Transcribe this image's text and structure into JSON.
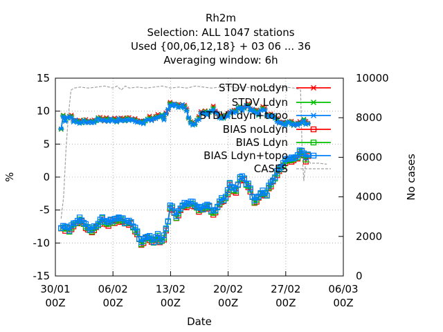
{
  "chart_data": {
    "type": "line",
    "title_lines": [
      "Rh2m",
      "Selection: ALL    1047 stations",
      "Used {00,06,12,18} + 03 06 ... 36",
      "Averaging window:  6h"
    ],
    "xlabel": "Date",
    "ylabel": "%",
    "y2label": "No cases",
    "xlim": [
      0,
      35
    ],
    "ylim": [
      -15,
      15
    ],
    "y2lim": [
      0,
      10000
    ],
    "grid": true,
    "legend_position": "top-right",
    "x_ticks": [
      {
        "x": 0,
        "line1": "30/01",
        "line2": "00Z"
      },
      {
        "x": 7,
        "line1": "06/02",
        "line2": "00Z"
      },
      {
        "x": 14,
        "line1": "13/02",
        "line2": "00Z"
      },
      {
        "x": 21,
        "line1": "20/02",
        "line2": "00Z"
      },
      {
        "x": 28,
        "line1": "27/02",
        "line2": "00Z"
      },
      {
        "x": 35,
        "line1": "06/03",
        "line2": "00Z"
      }
    ],
    "y_ticks": [
      {
        "v": 15,
        "label": "15"
      },
      {
        "v": 10,
        "label": "10"
      },
      {
        "v": 5,
        "label": "5"
      },
      {
        "v": 0,
        "label": "0"
      },
      {
        "v": -5,
        "label": "-5"
      },
      {
        "v": -10,
        "label": "-10"
      },
      {
        "v": -15,
        "label": "-15"
      }
    ],
    "y2_ticks": [
      {
        "v": 10000,
        "label": "10000"
      },
      {
        "v": 8000,
        "label": "8000"
      },
      {
        "v": 6000,
        "label": "6000"
      },
      {
        "v": 4000,
        "label": "4000"
      },
      {
        "v": 2000,
        "label": "2000"
      },
      {
        "v": 0,
        "label": "0"
      }
    ],
    "stdv_anchors": [
      [
        0.7,
        7.4
      ],
      [
        0.9,
        9.1
      ],
      [
        1.2,
        8.8
      ],
      [
        1.5,
        9.0
      ],
      [
        1.8,
        9.3
      ],
      [
        2.1,
        8.7
      ],
      [
        2.5,
        8.5
      ],
      [
        3.0,
        8.3
      ],
      [
        3.5,
        8.5
      ],
      [
        4.0,
        8.4
      ],
      [
        4.5,
        8.3
      ],
      [
        5.0,
        8.7
      ],
      [
        5.5,
        8.9
      ],
      [
        6.0,
        8.5
      ],
      [
        6.5,
        8.8
      ],
      [
        7.0,
        8.6
      ],
      [
        7.5,
        8.6
      ],
      [
        8.0,
        8.8
      ],
      [
        8.5,
        8.6
      ],
      [
        9.0,
        8.9
      ],
      [
        9.5,
        8.6
      ],
      [
        10.0,
        8.5
      ],
      [
        10.5,
        8.2
      ],
      [
        11.0,
        8.6
      ],
      [
        11.5,
        8.9
      ],
      [
        12.0,
        8.7
      ],
      [
        12.3,
        9.2
      ],
      [
        12.8,
        9.3
      ],
      [
        13.2,
        9.0
      ],
      [
        13.6,
        10.0
      ],
      [
        14.0,
        11.1
      ],
      [
        14.5,
        11.0
      ],
      [
        15.0,
        10.7
      ],
      [
        15.5,
        10.9
      ],
      [
        16.0,
        10.2
      ],
      [
        16.3,
        8.3
      ],
      [
        16.8,
        8.0
      ],
      [
        17.3,
        8.5
      ],
      [
        17.7,
        9.8
      ],
      [
        18.2,
        9.7
      ],
      [
        18.8,
        9.8
      ],
      [
        19.3,
        10.5
      ],
      [
        19.8,
        9.2
      ],
      [
        20.3,
        9.0
      ],
      [
        20.8,
        9.2
      ],
      [
        21.3,
        10.0
      ],
      [
        21.8,
        9.8
      ],
      [
        22.3,
        10.6
      ],
      [
        22.8,
        10.3
      ],
      [
        23.3,
        11.0
      ],
      [
        23.8,
        10.2
      ],
      [
        24.3,
        10.0
      ],
      [
        24.8,
        9.5
      ],
      [
        25.3,
        10.8
      ],
      [
        25.8,
        9.0
      ],
      [
        26.3,
        9.6
      ],
      [
        26.8,
        8.7
      ],
      [
        27.3,
        8.3
      ],
      [
        27.8,
        8.0
      ],
      [
        28.3,
        8.4
      ],
      [
        28.8,
        8.1
      ],
      [
        29.3,
        7.9
      ],
      [
        29.8,
        8.3
      ],
      [
        30.3,
        8.5
      ],
      [
        30.8,
        8.0
      ]
    ],
    "bias_anchors": [
      [
        0.7,
        -7.5
      ],
      [
        1.0,
        -7.4
      ],
      [
        1.4,
        -7.7
      ],
      [
        1.8,
        -7.9
      ],
      [
        2.1,
        -7.1
      ],
      [
        2.4,
        -7.0
      ],
      [
        2.8,
        -6.3
      ],
      [
        3.2,
        -6.5
      ],
      [
        3.6,
        -7.0
      ],
      [
        4.0,
        -7.8
      ],
      [
        4.4,
        -7.9
      ],
      [
        4.8,
        -7.6
      ],
      [
        5.2,
        -7.0
      ],
      [
        5.6,
        -6.2
      ],
      [
        6.0,
        -6.5
      ],
      [
        6.4,
        -7.0
      ],
      [
        6.8,
        -6.3
      ],
      [
        7.2,
        -6.6
      ],
      [
        7.6,
        -6.0
      ],
      [
        8.0,
        -6.2
      ],
      [
        8.4,
        -6.8
      ],
      [
        8.8,
        -6.6
      ],
      [
        9.2,
        -6.9
      ],
      [
        9.6,
        -7.5
      ],
      [
        10.0,
        -8.5
      ],
      [
        10.4,
        -9.9
      ],
      [
        10.8,
        -9.4
      ],
      [
        11.2,
        -8.8
      ],
      [
        11.6,
        -9.3
      ],
      [
        12.0,
        -9.9
      ],
      [
        12.3,
        -8.5
      ],
      [
        12.7,
        -9.6
      ],
      [
        13.0,
        -9.4
      ],
      [
        13.4,
        -8.3
      ],
      [
        13.7,
        -6.4
      ],
      [
        14.0,
        -4.0
      ],
      [
        14.3,
        -4.8
      ],
      [
        14.6,
        -5.9
      ],
      [
        15.0,
        -5.3
      ],
      [
        15.3,
        -4.5
      ],
      [
        15.6,
        -3.8
      ],
      [
        16.0,
        -4.3
      ],
      [
        16.4,
        -3.5
      ],
      [
        16.8,
        -4.1
      ],
      [
        17.2,
        -4.4
      ],
      [
        17.6,
        -4.8
      ],
      [
        18.0,
        -4.6
      ],
      [
        18.4,
        -4.2
      ],
      [
        18.8,
        -4.5
      ],
      [
        19.2,
        -5.3
      ],
      [
        19.6,
        -4.8
      ],
      [
        20.0,
        -3.4
      ],
      [
        20.4,
        -3.5
      ],
      [
        20.8,
        -2.7
      ],
      [
        21.2,
        -1.0
      ],
      [
        21.6,
        -1.5
      ],
      [
        22.0,
        -2.1
      ],
      [
        22.4,
        0.1
      ],
      [
        22.8,
        0.0
      ],
      [
        23.2,
        -0.8
      ],
      [
        23.6,
        -1.3
      ],
      [
        24.0,
        -3.2
      ],
      [
        24.4,
        -3.5
      ],
      [
        24.8,
        -2.6
      ],
      [
        25.2,
        -2.0
      ],
      [
        25.6,
        -3.0
      ],
      [
        26.0,
        -1.1
      ],
      [
        26.4,
        -0.7
      ],
      [
        26.8,
        0.5
      ],
      [
        27.2,
        1.2
      ],
      [
        27.6,
        2.0
      ],
      [
        28.0,
        2.6
      ],
      [
        28.4,
        3.0
      ],
      [
        28.8,
        2.7
      ],
      [
        29.2,
        3.1
      ],
      [
        29.6,
        3.6
      ],
      [
        30.0,
        4.3
      ],
      [
        30.4,
        2.9
      ],
      [
        30.8,
        3.4
      ]
    ],
    "cases_anchors": [
      [
        0.7,
        2900
      ],
      [
        1.0,
        4000
      ],
      [
        1.3,
        6500
      ],
      [
        1.6,
        8200
      ],
      [
        1.9,
        9400
      ],
      [
        2.3,
        9500
      ],
      [
        3.0,
        9550
      ],
      [
        4.0,
        9500
      ],
      [
        5.0,
        9550
      ],
      [
        6.0,
        9600
      ],
      [
        7.0,
        9500
      ],
      [
        7.5,
        9600
      ],
      [
        8.0,
        9400
      ],
      [
        8.5,
        9600
      ],
      [
        9.0,
        9500
      ],
      [
        10.0,
        9550
      ],
      [
        11.0,
        9500
      ],
      [
        12.0,
        9550
      ],
      [
        13.0,
        9600
      ],
      [
        14.0,
        9500
      ],
      [
        15.0,
        9550
      ],
      [
        16.0,
        9500
      ],
      [
        17.0,
        9600
      ],
      [
        18.0,
        9550
      ],
      [
        19.0,
        9500
      ],
      [
        20.0,
        9550
      ],
      [
        21.0,
        9600
      ],
      [
        22.0,
        9500
      ],
      [
        23.0,
        9550
      ],
      [
        24.0,
        9500
      ],
      [
        25.0,
        9600
      ],
      [
        26.0,
        9550
      ],
      [
        27.0,
        9500
      ],
      [
        28.0,
        9550
      ],
      [
        29.0,
        9500
      ],
      [
        29.5,
        9450
      ],
      [
        29.8,
        9400
      ],
      [
        30.0,
        6200
      ],
      [
        30.2,
        4800
      ],
      [
        30.5,
        6000
      ],
      [
        31.0,
        5700
      ],
      [
        32.0,
        5700
      ],
      [
        33.0,
        5650
      ]
    ],
    "series": [
      {
        "name": "STDV noLdyn",
        "kind": "stdv",
        "color": "#ff0000",
        "marker": "x",
        "offset": 0.12
      },
      {
        "name": "STDV Ldyn",
        "kind": "stdv",
        "color": "#00c000",
        "marker": "x",
        "offset": 0.0
      },
      {
        "name": "STDV Ldyn+topo",
        "kind": "stdv",
        "color": "#0080ff",
        "marker": "x",
        "offset": -0.08
      },
      {
        "name": "BIAS noLdyn",
        "kind": "bias",
        "color": "#ff0000",
        "marker": "square",
        "offset": -0.35
      },
      {
        "name": "BIAS Ldyn",
        "kind": "bias",
        "color": "#00c000",
        "marker": "square",
        "offset": -0.2
      },
      {
        "name": "BIAS Ldyn+topo",
        "kind": "bias",
        "color": "#0080ff",
        "marker": "square",
        "offset": 0.0
      },
      {
        "name": "CASES",
        "kind": "cases",
        "color": "#a0a0a0",
        "marker": "none",
        "offset": 0
      }
    ]
  }
}
